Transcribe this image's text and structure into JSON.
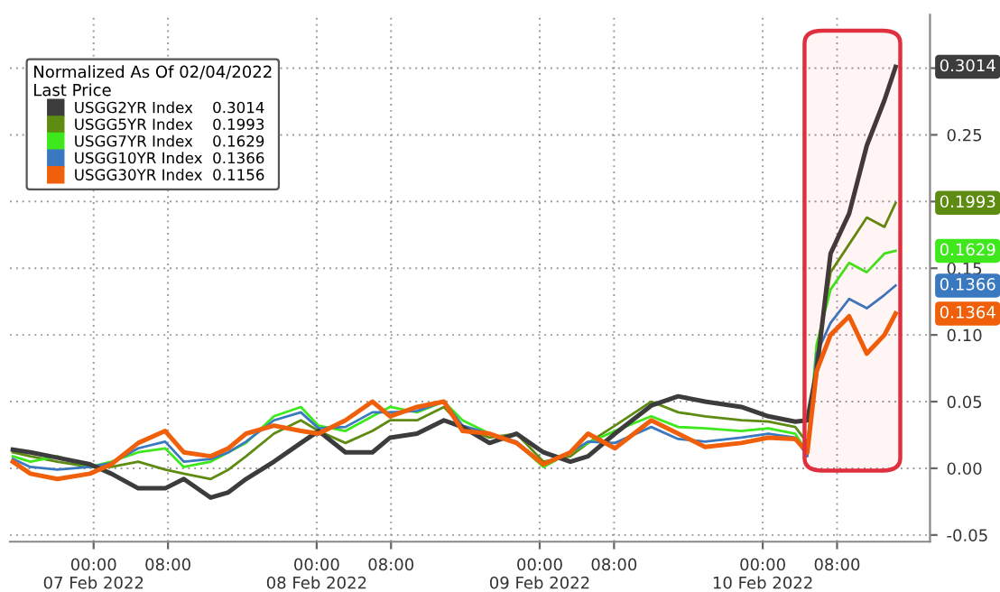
{
  "chart_data": {
    "type": "line",
    "legend_title": "Normalized As Of 02/04/2022\nLast Price",
    "legend": "top left",
    "grid": true,
    "x": [
      "2022-02-06T15:18",
      "2022-02-06T17:12",
      "2022-02-06T20:06",
      "2022-02-06T23:36",
      "2022-02-07T01:54",
      "2022-02-07T04:48",
      "2022-02-07T07:42",
      "2022-02-07T09:42",
      "2022-02-07T12:36",
      "2022-02-07T14:30",
      "2022-02-07T16:24",
      "2022-02-07T19:24",
      "2022-02-07T22:18",
      "2022-02-08T00:12",
      "2022-02-08T03:06",
      "2022-02-08T06:00",
      "2022-02-08T07:54",
      "2022-02-08T10:48",
      "2022-02-08T13:42",
      "2022-02-08T15:42",
      "2022-02-08T18:36",
      "2022-02-08T21:30",
      "2022-02-09T00:24",
      "2022-02-09T03:18",
      "2022-02-09T05:12",
      "2022-02-09T08:06",
      "2022-02-09T12:00",
      "2022-02-09T14:54",
      "2022-02-09T17:48",
      "2022-02-09T21:42",
      "2022-02-10T00:36",
      "2022-02-10T03:30",
      "2022-02-10T04:48",
      "2022-02-10T05:48",
      "2022-02-10T07:18",
      "2022-02-10T09:18",
      "2022-02-10T11:12",
      "2022-02-10T13:06",
      "2022-02-10T14:18"
    ],
    "series": [
      {
        "name": "USGG2YR Index    0.3014",
        "color": "#3c3c3c",
        "values": [
          0.014,
          0.012,
          0.008,
          0.003,
          -0.004,
          -0.015,
          -0.015,
          -0.008,
          -0.022,
          -0.018,
          -0.008,
          0.005,
          0.019,
          0.028,
          0.012,
          0.012,
          0.023,
          0.026,
          0.036,
          0.031,
          0.019,
          0.026,
          0.012,
          0.005,
          0.009,
          0.026,
          0.047,
          0.054,
          0.05,
          0.046,
          0.039,
          0.035,
          0.036,
          0.073,
          0.161,
          0.191,
          0.242,
          0.276,
          0.301
        ]
      },
      {
        "name": "USGG5YR Index    0.1993",
        "color": "#5e8c12",
        "values": [
          0.012,
          0.009,
          0.005,
          0.001,
          0.001,
          0.005,
          -0.001,
          -0.004,
          -0.008,
          -0.001,
          0.009,
          0.026,
          0.036,
          0.028,
          0.019,
          0.028,
          0.036,
          0.036,
          0.046,
          0.031,
          0.023,
          0.026,
          0.005,
          0.009,
          0.019,
          0.032,
          0.05,
          0.042,
          0.039,
          0.036,
          0.035,
          0.031,
          0.019,
          0.08,
          0.147,
          0.168,
          0.188,
          0.181,
          0.199
        ]
      },
      {
        "name": "USGG7YR Index    0.1629",
        "color": "#3ee81c",
        "values": [
          0.009,
          0.005,
          0.009,
          0.001,
          0.005,
          0.012,
          0.015,
          0.001,
          0.005,
          0.012,
          0.019,
          0.039,
          0.046,
          0.032,
          0.028,
          0.039,
          0.046,
          0.042,
          0.05,
          0.036,
          0.026,
          0.019,
          0.001,
          0.012,
          0.019,
          0.028,
          0.039,
          0.031,
          0.03,
          0.028,
          0.03,
          0.026,
          0.012,
          0.093,
          0.134,
          0.154,
          0.147,
          0.161,
          0.163
        ]
      },
      {
        "name": "USGG10YR Index  0.1366",
        "color": "#3a78c0",
        "values": [
          0.007,
          0.001,
          -0.001,
          0.001,
          0.004,
          0.015,
          0.02,
          0.005,
          0.007,
          0.012,
          0.02,
          0.036,
          0.042,
          0.03,
          0.031,
          0.042,
          0.042,
          0.043,
          0.05,
          0.032,
          0.026,
          0.02,
          0.003,
          0.012,
          0.02,
          0.019,
          0.031,
          0.022,
          0.02,
          0.023,
          0.026,
          0.023,
          0.009,
          0.086,
          0.109,
          0.127,
          0.12,
          0.13,
          0.137
        ]
      },
      {
        "name": "USGG30YR Index  0.1156",
        "color": "#f0600a",
        "values": [
          0.005,
          -0.004,
          -0.008,
          -0.004,
          0.003,
          0.019,
          0.028,
          0.012,
          0.009,
          0.015,
          0.026,
          0.032,
          0.028,
          0.026,
          0.036,
          0.05,
          0.039,
          0.046,
          0.05,
          0.028,
          0.026,
          0.019,
          0.003,
          0.012,
          0.026,
          0.015,
          0.036,
          0.026,
          0.016,
          0.019,
          0.023,
          0.022,
          0.012,
          0.073,
          0.1,
          0.114,
          0.086,
          0.1,
          0.116
        ]
      }
    ],
    "xlim": [
      "2022-02-06T15:00",
      "2022-02-10T18:00"
    ],
    "xticks": [
      {
        "value": "2022-02-07T00:00",
        "label": "00:00\n07 Feb 2022"
      },
      {
        "value": "2022-02-07T08:00",
        "label": "08:00"
      },
      {
        "value": "2022-02-08T00:00",
        "label": "00:00\n08 Feb 2022"
      },
      {
        "value": "2022-02-08T08:00",
        "label": "08:00"
      },
      {
        "value": "2022-02-09T00:00",
        "label": "00:00\n09 Feb 2022"
      },
      {
        "value": "2022-02-09T08:00",
        "label": "08:00"
      },
      {
        "value": "2022-02-10T00:00",
        "label": "00:00\n10 Feb 2022"
      },
      {
        "value": "2022-02-10T08:00",
        "label": "08:00"
      }
    ],
    "ylim": [
      -0.055,
      0.34
    ],
    "yticks": [
      {
        "value": -0.05,
        "label": "-0.05"
      },
      {
        "value": 0,
        "label": "0.00"
      },
      {
        "value": 0.05,
        "label": "0.05"
      },
      {
        "value": 0.1,
        "label": "0.10"
      },
      {
        "value": 0.15,
        "label": "0.15"
      },
      {
        "value": 0.2,
        "label": null
      },
      {
        "value": 0.25,
        "label": "0.25"
      },
      {
        "value": 0.3,
        "label": null
      }
    ],
    "bands": [
      {
        "axis": "x",
        "from": "2022-02-10T04:30",
        "to": "2022-02-10T14:48",
        "color": "#e03040"
      }
    ],
    "annotations": [
      "0.3014",
      "0.1993",
      "0.1629",
      "0.1366",
      "0.1364"
    ]
  }
}
